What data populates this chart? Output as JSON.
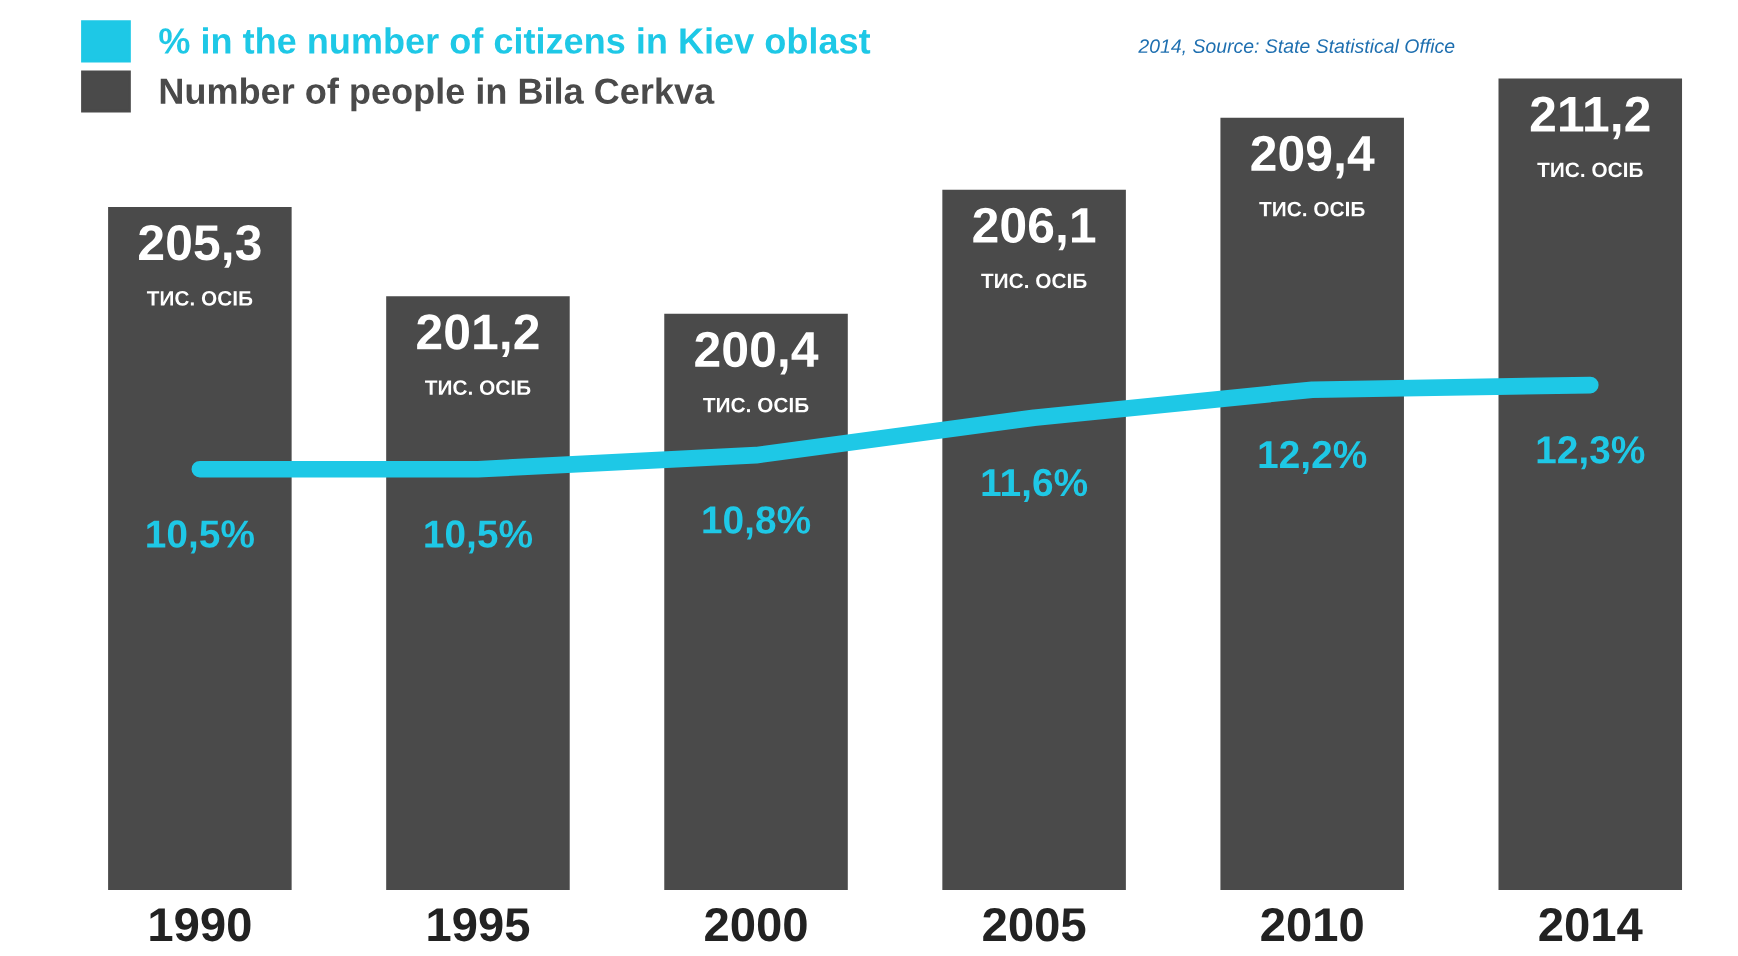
{
  "chart_data": {
    "type": "bar",
    "categories": [
      "1990",
      "1995",
      "2000",
      "2005",
      "2010",
      "2014"
    ],
    "tick_labels": "x",
    "grid": false,
    "legend": "top left",
    "series": [
      {
        "name": "Number of people in Bila Cerkva",
        "color": "#4a4a4a",
        "values": [
          205.3,
          201.2,
          200.4,
          206.1,
          209.4,
          211.2
        ],
        "value_labels": [
          "205,3\nТИС. ОСІБ",
          "201,2\nТИС. ОСІБ",
          "200,4\nТИС. ОСІБ",
          "206,1\nТИС. ОСІБ",
          "209,4\nТИС. ОСІБ",
          "211,2\nТИС. ОСІБ"
        ]
      },
      {
        "name": "% in the number of citizens in Kiev oblast",
        "type": "line",
        "axis": "y2",
        "color": "#1ec8e6",
        "values": [
          10.5,
          10.5,
          10.8,
          11.6,
          12.2,
          12.3
        ],
        "value_labels": [
          "10,5%",
          "10,5%",
          "10,8%",
          "11,6%",
          "12,2%",
          "12,3%"
        ]
      }
    ],
    "annotations": [
      "2014, Source: State Statistical Office"
    ]
  }
}
